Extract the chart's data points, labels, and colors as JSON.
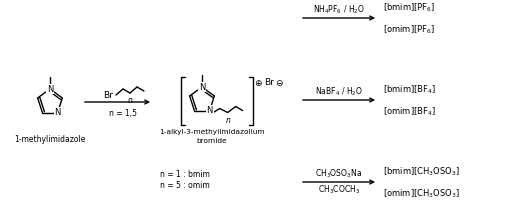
{
  "bg_color": "#ffffff",
  "text_color": "#000000",
  "reactions": {
    "arrow1_reagent": "NH$_4$PF$_6$ / H$_2$O",
    "arrow2_reagent": "NaBF$_4$ / H$_2$O",
    "arrow3_reagent1": "CH$_3$OSO$_3$Na",
    "arrow3_reagent2": "CH$_3$COCH$_3$"
  },
  "labels": {
    "methylimidazole": "1-methylimidazole",
    "product1": "1-alkyl-3-methylimidazolium",
    "product2": "bromide",
    "n_eq": "n = 1,5",
    "n1": "n = 1 : bmim",
    "n5": "n = 5 : omim",
    "bmim_PF6": "[bmim][PF$_6$]",
    "omim_PF6": "[omim][PF$_6$]",
    "bmim_BF4": "[bmim][BF$_4$]",
    "omim_BF4": "[omim][BF$_4$]",
    "bmim_MSO3": "[bmim][CH$_3$OSO$_3$]",
    "omim_MSO3": "[omim][CH$_3$OSO$_3$]"
  },
  "ring_scale": 13,
  "lw": 1.0
}
